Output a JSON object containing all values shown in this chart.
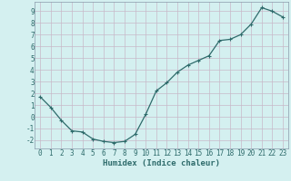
{
  "x": [
    0,
    1,
    2,
    3,
    4,
    5,
    6,
    7,
    8,
    9,
    10,
    11,
    12,
    13,
    14,
    15,
    16,
    17,
    18,
    19,
    20,
    21,
    22,
    23
  ],
  "y": [
    1.7,
    0.8,
    -0.3,
    -1.2,
    -1.3,
    -1.9,
    -2.1,
    -2.2,
    -2.1,
    -1.5,
    0.2,
    2.2,
    2.9,
    3.8,
    4.4,
    4.8,
    5.2,
    6.5,
    6.6,
    7.0,
    7.9,
    9.3,
    9.0,
    8.5
  ],
  "line_color": "#2e6b6b",
  "marker": "P",
  "marker_size": 2.5,
  "background_color": "#d4f0f0",
  "grid_color": "#c8b8c8",
  "xlabel": "Humidex (Indice chaleur)",
  "xlim": [
    -0.5,
    23.5
  ],
  "ylim": [
    -2.7,
    9.8
  ],
  "xticks": [
    0,
    1,
    2,
    3,
    4,
    5,
    6,
    7,
    8,
    9,
    10,
    11,
    12,
    13,
    14,
    15,
    16,
    17,
    18,
    19,
    20,
    21,
    22,
    23
  ],
  "yticks": [
    -2,
    -1,
    0,
    1,
    2,
    3,
    4,
    5,
    6,
    7,
    8,
    9
  ],
  "tick_color": "#2e6b6b",
  "xlabel_fontsize": 6.5,
  "tick_fontsize": 5.5,
  "line_width": 0.9,
  "marker_color": "#2e6b6b",
  "spine_color": "#8899aa"
}
